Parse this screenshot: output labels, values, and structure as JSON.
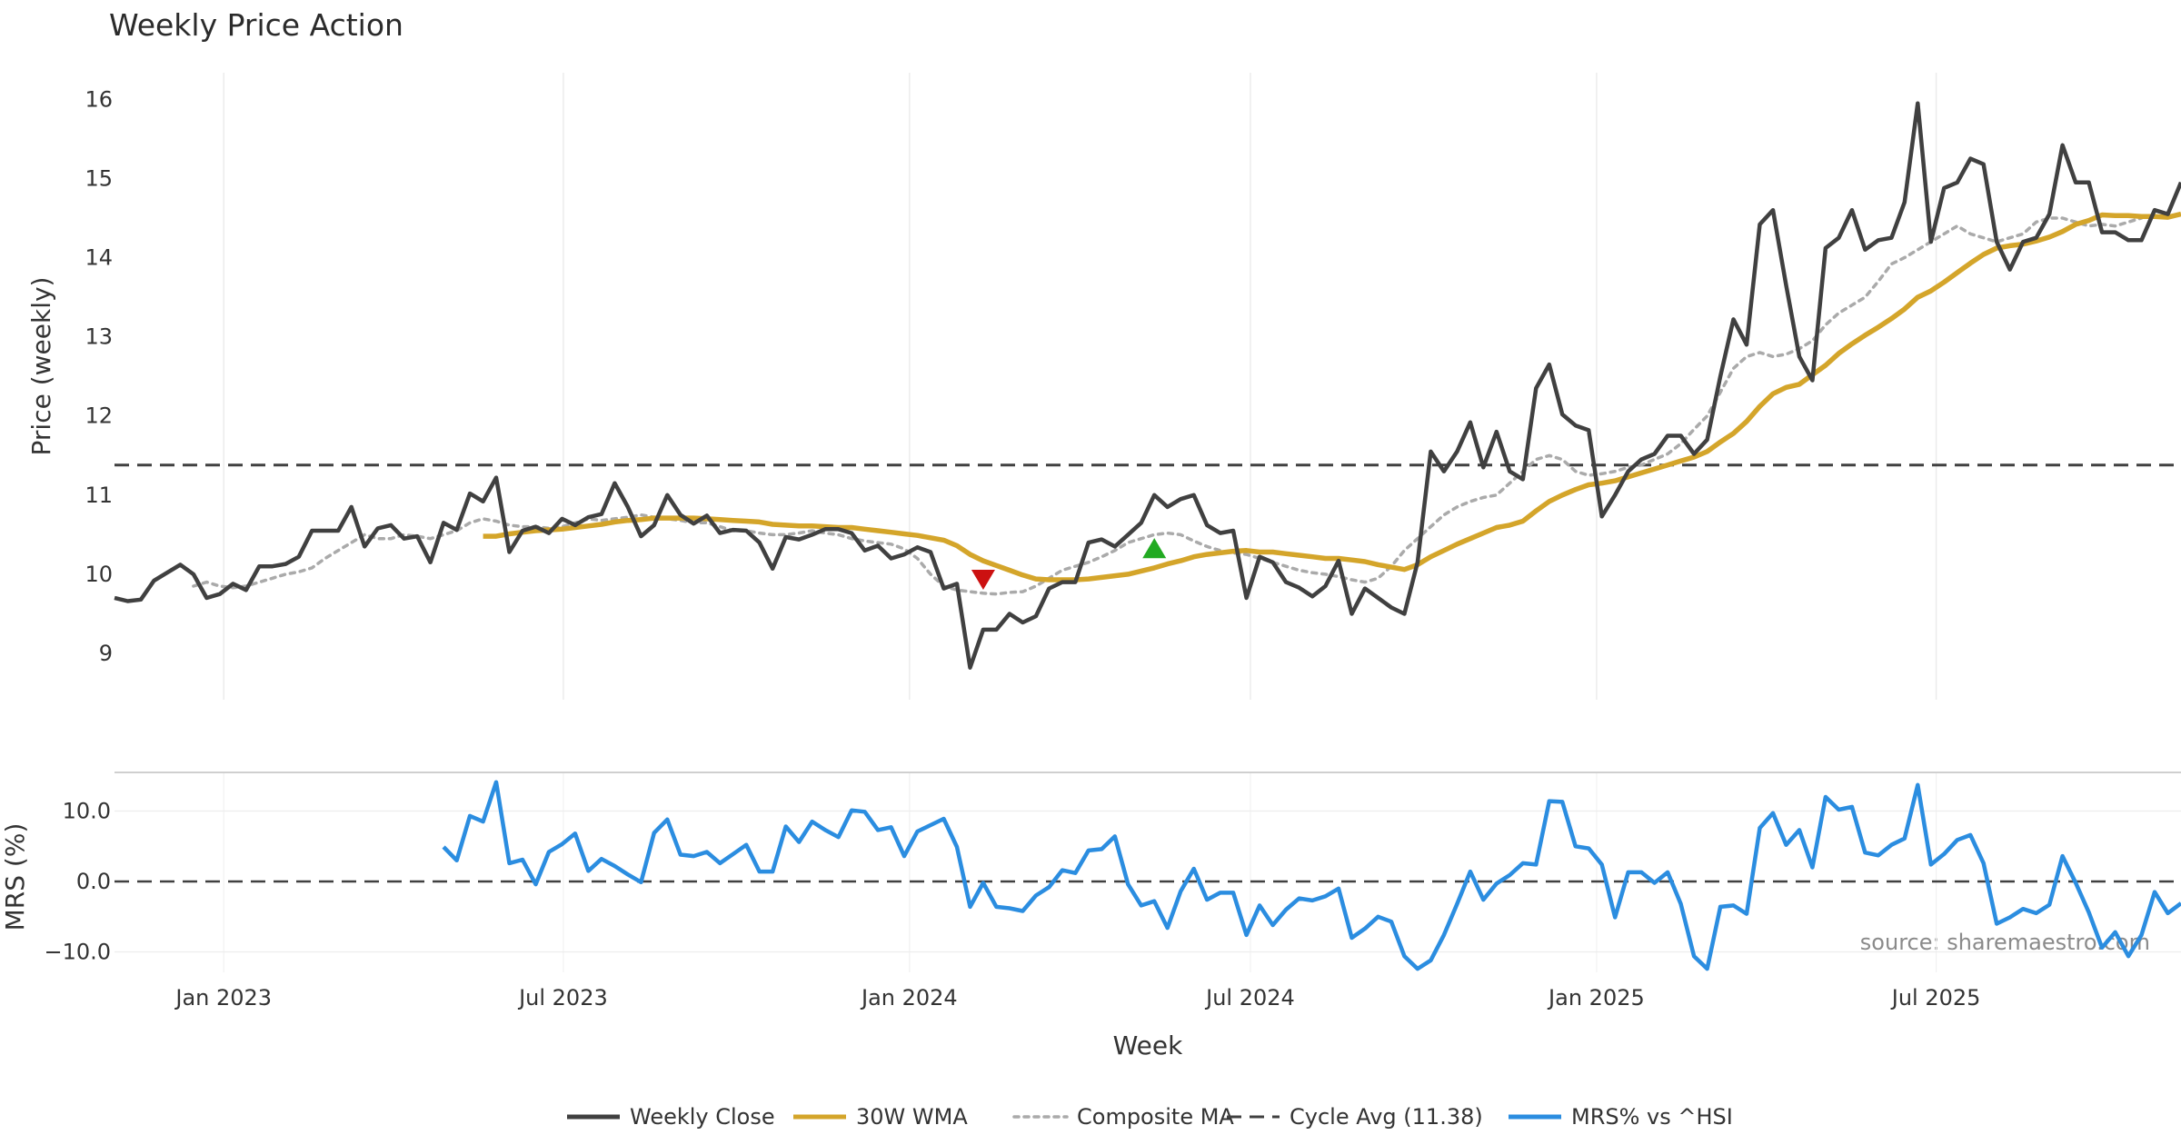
{
  "chart_data": [
    {
      "type": "line",
      "title": "Weekly Price Action",
      "ylabel": "Price (weekly)",
      "ylim": [
        8.4,
        16.4
      ],
      "yticks": [
        9,
        10,
        11,
        12,
        13,
        14,
        15,
        16
      ],
      "grid": "vertical",
      "hline": {
        "label": "Cycle Avg (11.38)",
        "value": 11.38
      },
      "x_start": "2022-11-04",
      "x_step_days": 7,
      "series": [
        {
          "name": "Weekly Close",
          "color": "#404040",
          "values": [
            9.7,
            9.66,
            9.68,
            9.92,
            10.02,
            10.12,
            10.0,
            9.7,
            9.75,
            9.88,
            9.8,
            10.1,
            10.1,
            10.13,
            10.22,
            10.55,
            10.55,
            10.55,
            10.85,
            10.35,
            10.58,
            10.62,
            10.45,
            10.48,
            10.15,
            10.65,
            10.56,
            11.02,
            10.92,
            11.22,
            10.28,
            10.55,
            10.6,
            10.52,
            10.7,
            10.62,
            10.72,
            10.76,
            11.15,
            10.85,
            10.48,
            10.62,
            11.0,
            10.75,
            10.64,
            10.74,
            10.52,
            10.56,
            10.55,
            10.4,
            10.07,
            10.47,
            10.44,
            10.5,
            10.57,
            10.57,
            10.52,
            10.3,
            10.36,
            10.2,
            10.25,
            10.34,
            10.28,
            9.82,
            9.88,
            8.82,
            9.3,
            9.3,
            9.5,
            9.39,
            9.47,
            9.82,
            9.9,
            9.9,
            10.4,
            10.44,
            10.35,
            10.5,
            10.65,
            11.0,
            10.85,
            10.95,
            11.0,
            10.62,
            10.52,
            10.55,
            9.7,
            10.22,
            10.15,
            9.9,
            9.83,
            9.72,
            9.85,
            10.17,
            9.5,
            9.82,
            9.7,
            9.58,
            9.5,
            10.15,
            11.55,
            11.3,
            11.55,
            11.92,
            11.35,
            11.8,
            11.3,
            11.2,
            12.35,
            12.65,
            12.02,
            11.88,
            11.82,
            10.73,
            11.0,
            11.3,
            11.45,
            11.52,
            11.75,
            11.75,
            11.52,
            11.7,
            12.5,
            13.22,
            12.9,
            14.42,
            14.6,
            13.65,
            12.75,
            12.45,
            14.12,
            14.25,
            14.6,
            14.1,
            14.22,
            14.25,
            14.7,
            15.95,
            14.2,
            14.88,
            14.95,
            15.25,
            15.18,
            14.2,
            13.85,
            14.2,
            14.25,
            14.55,
            15.42,
            14.95,
            14.95,
            14.32,
            14.32,
            14.22,
            14.22,
            14.6,
            14.55,
            14.95
          ]
        },
        {
          "name": "30W WMA",
          "color": "#d4a52a",
          "start_index": 28,
          "values": [
            10.48,
            10.48,
            10.51,
            10.53,
            10.55,
            10.56,
            10.57,
            10.59,
            10.61,
            10.63,
            10.66,
            10.68,
            10.69,
            10.71,
            10.71,
            10.71,
            10.71,
            10.7,
            10.69,
            10.68,
            10.67,
            10.66,
            10.63,
            10.62,
            10.61,
            10.61,
            10.6,
            10.59,
            10.59,
            10.57,
            10.55,
            10.53,
            10.51,
            10.49,
            10.46,
            10.43,
            10.36,
            10.25,
            10.17,
            10.11,
            10.05,
            9.99,
            9.94,
            9.93,
            9.93,
            9.93,
            9.94,
            9.96,
            9.98,
            10.0,
            10.04,
            10.08,
            10.13,
            10.17,
            10.22,
            10.25,
            10.27,
            10.29,
            10.3,
            10.28,
            10.28,
            10.26,
            10.24,
            10.22,
            10.2,
            10.2,
            10.18,
            10.16,
            10.12,
            10.09,
            10.06,
            10.12,
            10.22,
            10.3,
            10.38,
            10.45,
            10.52,
            10.59,
            10.62,
            10.67,
            10.8,
            10.92,
            11.0,
            11.07,
            11.13,
            11.15,
            11.18,
            11.23,
            11.28,
            11.33,
            11.38,
            11.43,
            11.48,
            11.55,
            11.67,
            11.78,
            11.93,
            12.12,
            12.28,
            12.36,
            12.4,
            12.52,
            12.64,
            12.79,
            12.91,
            13.02,
            13.12,
            13.23,
            13.35,
            13.5,
            13.58,
            13.69,
            13.81,
            13.93,
            14.04,
            14.12,
            14.15,
            14.17,
            14.21,
            14.26,
            14.33,
            14.42,
            14.47,
            14.54,
            14.53,
            14.53,
            14.52,
            14.52,
            14.51,
            14.55
          ]
        },
        {
          "name": "Composite MA",
          "color": "#aaaaaa",
          "start_index": 6,
          "values": [
            9.85,
            9.9,
            9.85,
            9.83,
            9.85,
            9.9,
            9.95,
            10.0,
            10.03,
            10.08,
            10.2,
            10.3,
            10.4,
            10.5,
            10.45,
            10.45,
            10.5,
            10.48,
            10.45,
            10.5,
            10.55,
            10.65,
            10.7,
            10.67,
            10.62,
            10.6,
            10.6,
            10.58,
            10.6,
            10.65,
            10.7,
            10.68,
            10.7,
            10.72,
            10.75,
            10.72,
            10.7,
            10.68,
            10.65,
            10.65,
            10.6,
            10.55,
            10.55,
            10.52,
            10.5,
            10.5,
            10.52,
            10.55,
            10.52,
            10.5,
            10.45,
            10.42,
            10.4,
            10.38,
            10.32,
            10.2,
            10.0,
            9.85,
            9.8,
            9.78,
            9.76,
            9.75,
            9.77,
            9.78,
            9.85,
            9.95,
            10.05,
            10.1,
            10.15,
            10.22,
            10.3,
            10.4,
            10.45,
            10.5,
            10.52,
            10.5,
            10.42,
            10.35,
            10.3,
            10.27,
            10.25,
            10.2,
            10.15,
            10.1,
            10.05,
            10.02,
            10.0,
            9.97,
            9.93,
            9.9,
            9.95,
            10.1,
            10.3,
            10.45,
            10.6,
            10.75,
            10.85,
            10.92,
            10.97,
            11.0,
            11.15,
            11.3,
            11.45,
            11.5,
            11.45,
            11.3,
            11.25,
            11.27,
            11.3,
            11.35,
            11.38,
            11.45,
            11.52,
            11.65,
            11.83,
            12.0,
            12.3,
            12.6,
            12.75,
            12.8,
            12.75,
            12.78,
            12.85,
            12.95,
            13.15,
            13.3,
            13.4,
            13.5,
            13.7,
            13.92,
            14.0,
            14.1,
            14.2,
            14.3,
            14.4,
            14.3,
            14.25,
            14.2,
            14.25,
            14.3,
            14.45,
            14.5,
            14.5,
            14.45,
            14.4,
            14.42,
            14.4,
            14.45,
            14.5
          ]
        }
      ],
      "markers": [
        {
          "type": "sell",
          "shape": "triangle-down",
          "color": "#cc1111",
          "x_index": 66,
          "y": 9.93
        },
        {
          "type": "buy",
          "shape": "triangle-up",
          "color": "#22aa22",
          "x_index": 79,
          "y": 10.33
        }
      ]
    },
    {
      "type": "line",
      "ylabel": "MRS (%)",
      "ylim": [
        -14,
        16
      ],
      "yticks": [
        -10,
        0,
        10
      ],
      "ytick_labels": [
        "−10.0",
        "0.0",
        "10.0"
      ],
      "hline": {
        "value": 0
      },
      "series": [
        {
          "name": "MRS% vs ^HSI",
          "color": "#2b8de0",
          "start_index": 25,
          "values": [
            4.9,
            3.0,
            9.3,
            8.5,
            14.1,
            2.6,
            3.1,
            -0.4,
            4.2,
            5.3,
            6.8,
            1.5,
            3.2,
            2.2,
            1.0,
            -0.1,
            6.9,
            8.8,
            3.8,
            3.6,
            4.2,
            2.6,
            3.9,
            5.2,
            1.4,
            1.4,
            7.8,
            5.6,
            8.5,
            7.3,
            6.3,
            10.1,
            9.9,
            7.3,
            7.7,
            3.6,
            7.1,
            8.0,
            8.9,
            4.9,
            -3.6,
            -0.2,
            -3.6,
            -3.8,
            -4.2,
            -2.0,
            -0.8,
            1.6,
            1.2,
            4.4,
            4.6,
            6.4,
            -0.4,
            -3.4,
            -2.8,
            -6.6,
            -1.4,
            1.8,
            -2.6,
            -1.6,
            -1.6,
            -7.6,
            -3.4,
            -6.2,
            -4.0,
            -2.4,
            -2.7,
            -2.1,
            -1.0,
            -8.0,
            -6.7,
            -5.0,
            -5.7,
            -10.6,
            -12.4,
            -11.2,
            -7.6,
            -3.2,
            1.4,
            -2.6,
            -0.3,
            0.9,
            2.6,
            2.4,
            11.4,
            11.3,
            5.0,
            4.7,
            2.4,
            -5.1,
            1.3,
            1.3,
            -0.2,
            1.3,
            -3.2,
            -10.6,
            -12.4,
            -3.6,
            -3.4,
            -4.6,
            7.6,
            9.7,
            5.2,
            7.3,
            2.0,
            12.0,
            10.2,
            10.6,
            4.1,
            3.7,
            5.2,
            6.1,
            13.7,
            2.4,
            3.9,
            5.9,
            6.6,
            2.6,
            -6.0,
            -5.1,
            -3.9,
            -4.5,
            -3.3,
            3.6,
            -0.2,
            -4.4,
            -9.4,
            -7.2,
            -10.6,
            -7.6,
            -1.5,
            -4.5,
            -3.1
          ]
        }
      ]
    }
  ],
  "x_axis": {
    "label": "Week",
    "ticks": [
      {
        "label": "Jan 2023",
        "index": 8.3
      },
      {
        "label": "Jul 2023",
        "index": 34.1
      },
      {
        "label": "Jan 2024",
        "index": 60.4
      },
      {
        "label": "Jul 2024",
        "index": 86.3
      },
      {
        "label": "Jan 2025",
        "index": 112.6
      },
      {
        "label": "Jul 2025",
        "index": 138.4
      }
    ]
  },
  "legend": {
    "placement": "bottom-center",
    "items": [
      {
        "label": "Weekly Close",
        "color": "#404040",
        "style": "solid"
      },
      {
        "label": "30W WMA",
        "color": "#d4a52a",
        "style": "solid"
      },
      {
        "label": "Composite MA",
        "color": "#aaaaaa",
        "style": "dotted"
      },
      {
        "label": "Cycle Avg (11.38)",
        "color": "#404040",
        "style": "dashed"
      },
      {
        "label": "MRS% vs ^HSI",
        "color": "#2b8de0",
        "style": "solid"
      }
    ]
  },
  "source": "source: sharemaestro.com"
}
